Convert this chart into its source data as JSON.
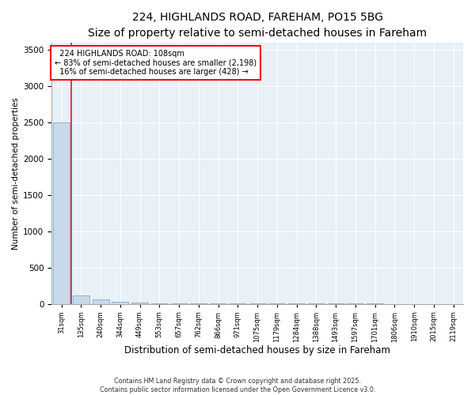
{
  "title": "224, HIGHLANDS ROAD, FAREHAM, PO15 5BG",
  "subtitle": "Size of property relative to semi-detached houses in Fareham",
  "xlabel": "Distribution of semi-detached houses by size in Fareham",
  "ylabel": "Number of semi-detached properties",
  "categories": [
    "31sqm",
    "135sqm",
    "240sqm",
    "344sqm",
    "449sqm",
    "553sqm",
    "657sqm",
    "762sqm",
    "866sqm",
    "971sqm",
    "1075sqm",
    "1179sqm",
    "1284sqm",
    "1388sqm",
    "1493sqm",
    "1597sqm",
    "1701sqm",
    "1806sqm",
    "1910sqm",
    "2015sqm",
    "2119sqm"
  ],
  "values": [
    2500,
    120,
    60,
    30,
    18,
    10,
    7,
    5,
    3,
    2,
    2,
    1,
    1,
    1,
    1,
    1,
    1,
    0,
    0,
    0,
    0
  ],
  "bar_color": "#c8daea",
  "bar_edge_color": "#7aabcf",
  "property_line_x": 0.5,
  "property_label": "224 HIGHLANDS ROAD: 108sqm",
  "smaller_pct": "83%",
  "smaller_count": "2,198",
  "larger_pct": "16%",
  "larger_count": 428,
  "annotation_box_color": "red",
  "ylim": [
    0,
    3600
  ],
  "yticks": [
    0,
    500,
    1000,
    1500,
    2000,
    2500,
    3000,
    3500
  ],
  "footer1": "Contains HM Land Registry data © Crown copyright and database right 2025.",
  "footer2": "Contains public sector information licensed under the Open Government Licence v3.0.",
  "title_fontsize": 10,
  "subtitle_fontsize": 9,
  "bg_color": "#e8f0f8"
}
